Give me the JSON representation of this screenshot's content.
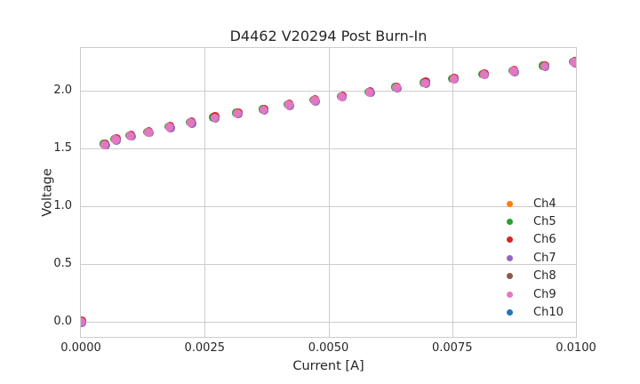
{
  "figure": {
    "title": "D4462 V20294 Post Burn-In"
  },
  "axes": {
    "xlabel": "Current [A]",
    "ylabel": "Voltage",
    "x_ticks": [
      {
        "label": "0.0000",
        "value": 0.0
      },
      {
        "label": "0.0025",
        "value": 0.0025
      },
      {
        "label": "0.0050",
        "value": 0.005
      },
      {
        "label": "0.0075",
        "value": 0.0075
      },
      {
        "label": "0.0100",
        "value": 0.01
      }
    ],
    "y_ticks": [
      {
        "label": "0.0",
        "value": 0.0
      },
      {
        "label": "0.5",
        "value": 0.5
      },
      {
        "label": "1.0",
        "value": 1.0
      },
      {
        "label": "1.5",
        "value": 1.5
      },
      {
        "label": "2.0",
        "value": 2.0
      }
    ]
  },
  "legend": {
    "items": [
      {
        "label": "Ch4",
        "color": "#ff7f0e"
      },
      {
        "label": "Ch5",
        "color": "#2ca02c"
      },
      {
        "label": "Ch6",
        "color": "#d62728"
      },
      {
        "label": "Ch7",
        "color": "#9467bd"
      },
      {
        "label": "Ch8",
        "color": "#8c564b"
      },
      {
        "label": "Ch9",
        "color": "#e377c2"
      },
      {
        "label": "Ch10",
        "color": "#1f77b4"
      }
    ]
  },
  "colors": {
    "background": "#ffffff",
    "grid": "#cccccc",
    "spine": "#cccccc",
    "text": "#262626",
    "top_series": "#e377c2",
    "fringe_green": "#2ca02c",
    "fringe_red": "#d62728",
    "fringe_purple": "#9467bd"
  },
  "chart_data": {
    "type": "scatter",
    "title": "D4462 V20294 Post Burn-In",
    "xlabel": "Current [A]",
    "ylabel": "Voltage",
    "xlim": [
      0.0,
      0.01
    ],
    "ylim": [
      -0.13,
      2.37
    ],
    "grid": true,
    "legend_position": "lower right",
    "x": [
      0.0,
      0.00048,
      0.0007,
      0.001,
      0.00136,
      0.00179,
      0.00222,
      0.0027,
      0.00316,
      0.00369,
      0.0042,
      0.00472,
      0.00527,
      0.00583,
      0.00637,
      0.00695,
      0.00753,
      0.00814,
      0.00874,
      0.00936,
      0.00996
    ],
    "voltage": [
      0.0,
      1.533,
      1.577,
      1.609,
      1.64,
      1.684,
      1.722,
      1.767,
      1.803,
      1.834,
      1.876,
      1.915,
      1.948,
      1.986,
      2.026,
      2.067,
      2.101,
      2.139,
      2.169,
      2.212,
      2.246
    ],
    "series": [
      {
        "name": "Ch4",
        "color": "#ff7f0e",
        "values": "overlaps shared voltage array"
      },
      {
        "name": "Ch5",
        "color": "#2ca02c",
        "values": "overlaps shared voltage array"
      },
      {
        "name": "Ch6",
        "color": "#d62728",
        "values": "overlaps shared voltage array"
      },
      {
        "name": "Ch7",
        "color": "#9467bd",
        "values": "overlaps shared voltage array"
      },
      {
        "name": "Ch8",
        "color": "#8c564b",
        "values": "overlaps shared voltage array"
      },
      {
        "name": "Ch9",
        "color": "#e377c2",
        "values": "overlaps shared voltage array"
      },
      {
        "name": "Ch10",
        "color": "#1f77b4",
        "values": "overlaps shared voltage array"
      }
    ],
    "note": "All seven channels plot nearly identical points; Ch9 (pink) markers sit on top with small green/red/purple fringes of the channels beneath."
  }
}
